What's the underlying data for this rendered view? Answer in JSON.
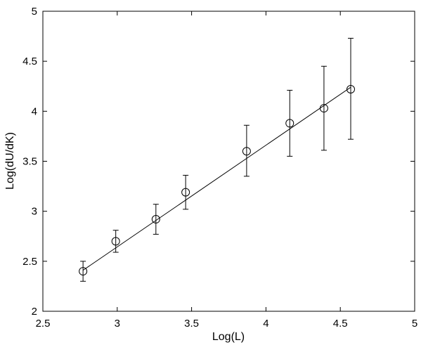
{
  "chart_data": {
    "type": "scatter",
    "title": "",
    "xlabel": "Log(L)",
    "ylabel": "Log(dU/dK)",
    "xlim": [
      2.5,
      5
    ],
    "ylim": [
      2,
      5
    ],
    "xticks": [
      "2.5",
      "3",
      "3.5",
      "4",
      "4.5",
      "5"
    ],
    "yticks": [
      "2",
      "2.5",
      "3",
      "3.5",
      "4",
      "4.5",
      "5"
    ],
    "grid": false,
    "series": [
      {
        "marker": "circle",
        "x": [
          2.77,
          2.99,
          3.26,
          3.46,
          3.87,
          4.16,
          4.39,
          4.57
        ],
        "y": [
          2.4,
          2.7,
          2.92,
          3.19,
          3.6,
          3.88,
          4.03,
          4.22
        ],
        "err_low": [
          2.3,
          2.59,
          2.77,
          3.02,
          3.35,
          3.55,
          3.61,
          3.72
        ],
        "err_high": [
          2.5,
          2.81,
          3.07,
          3.36,
          3.86,
          4.21,
          4.45,
          4.73
        ]
      }
    ],
    "fit_line": {
      "x": [
        2.77,
        4.57
      ],
      "y": [
        2.41,
        4.24
      ]
    },
    "colors": {
      "line": "#000000",
      "background": "#ffffff"
    }
  }
}
